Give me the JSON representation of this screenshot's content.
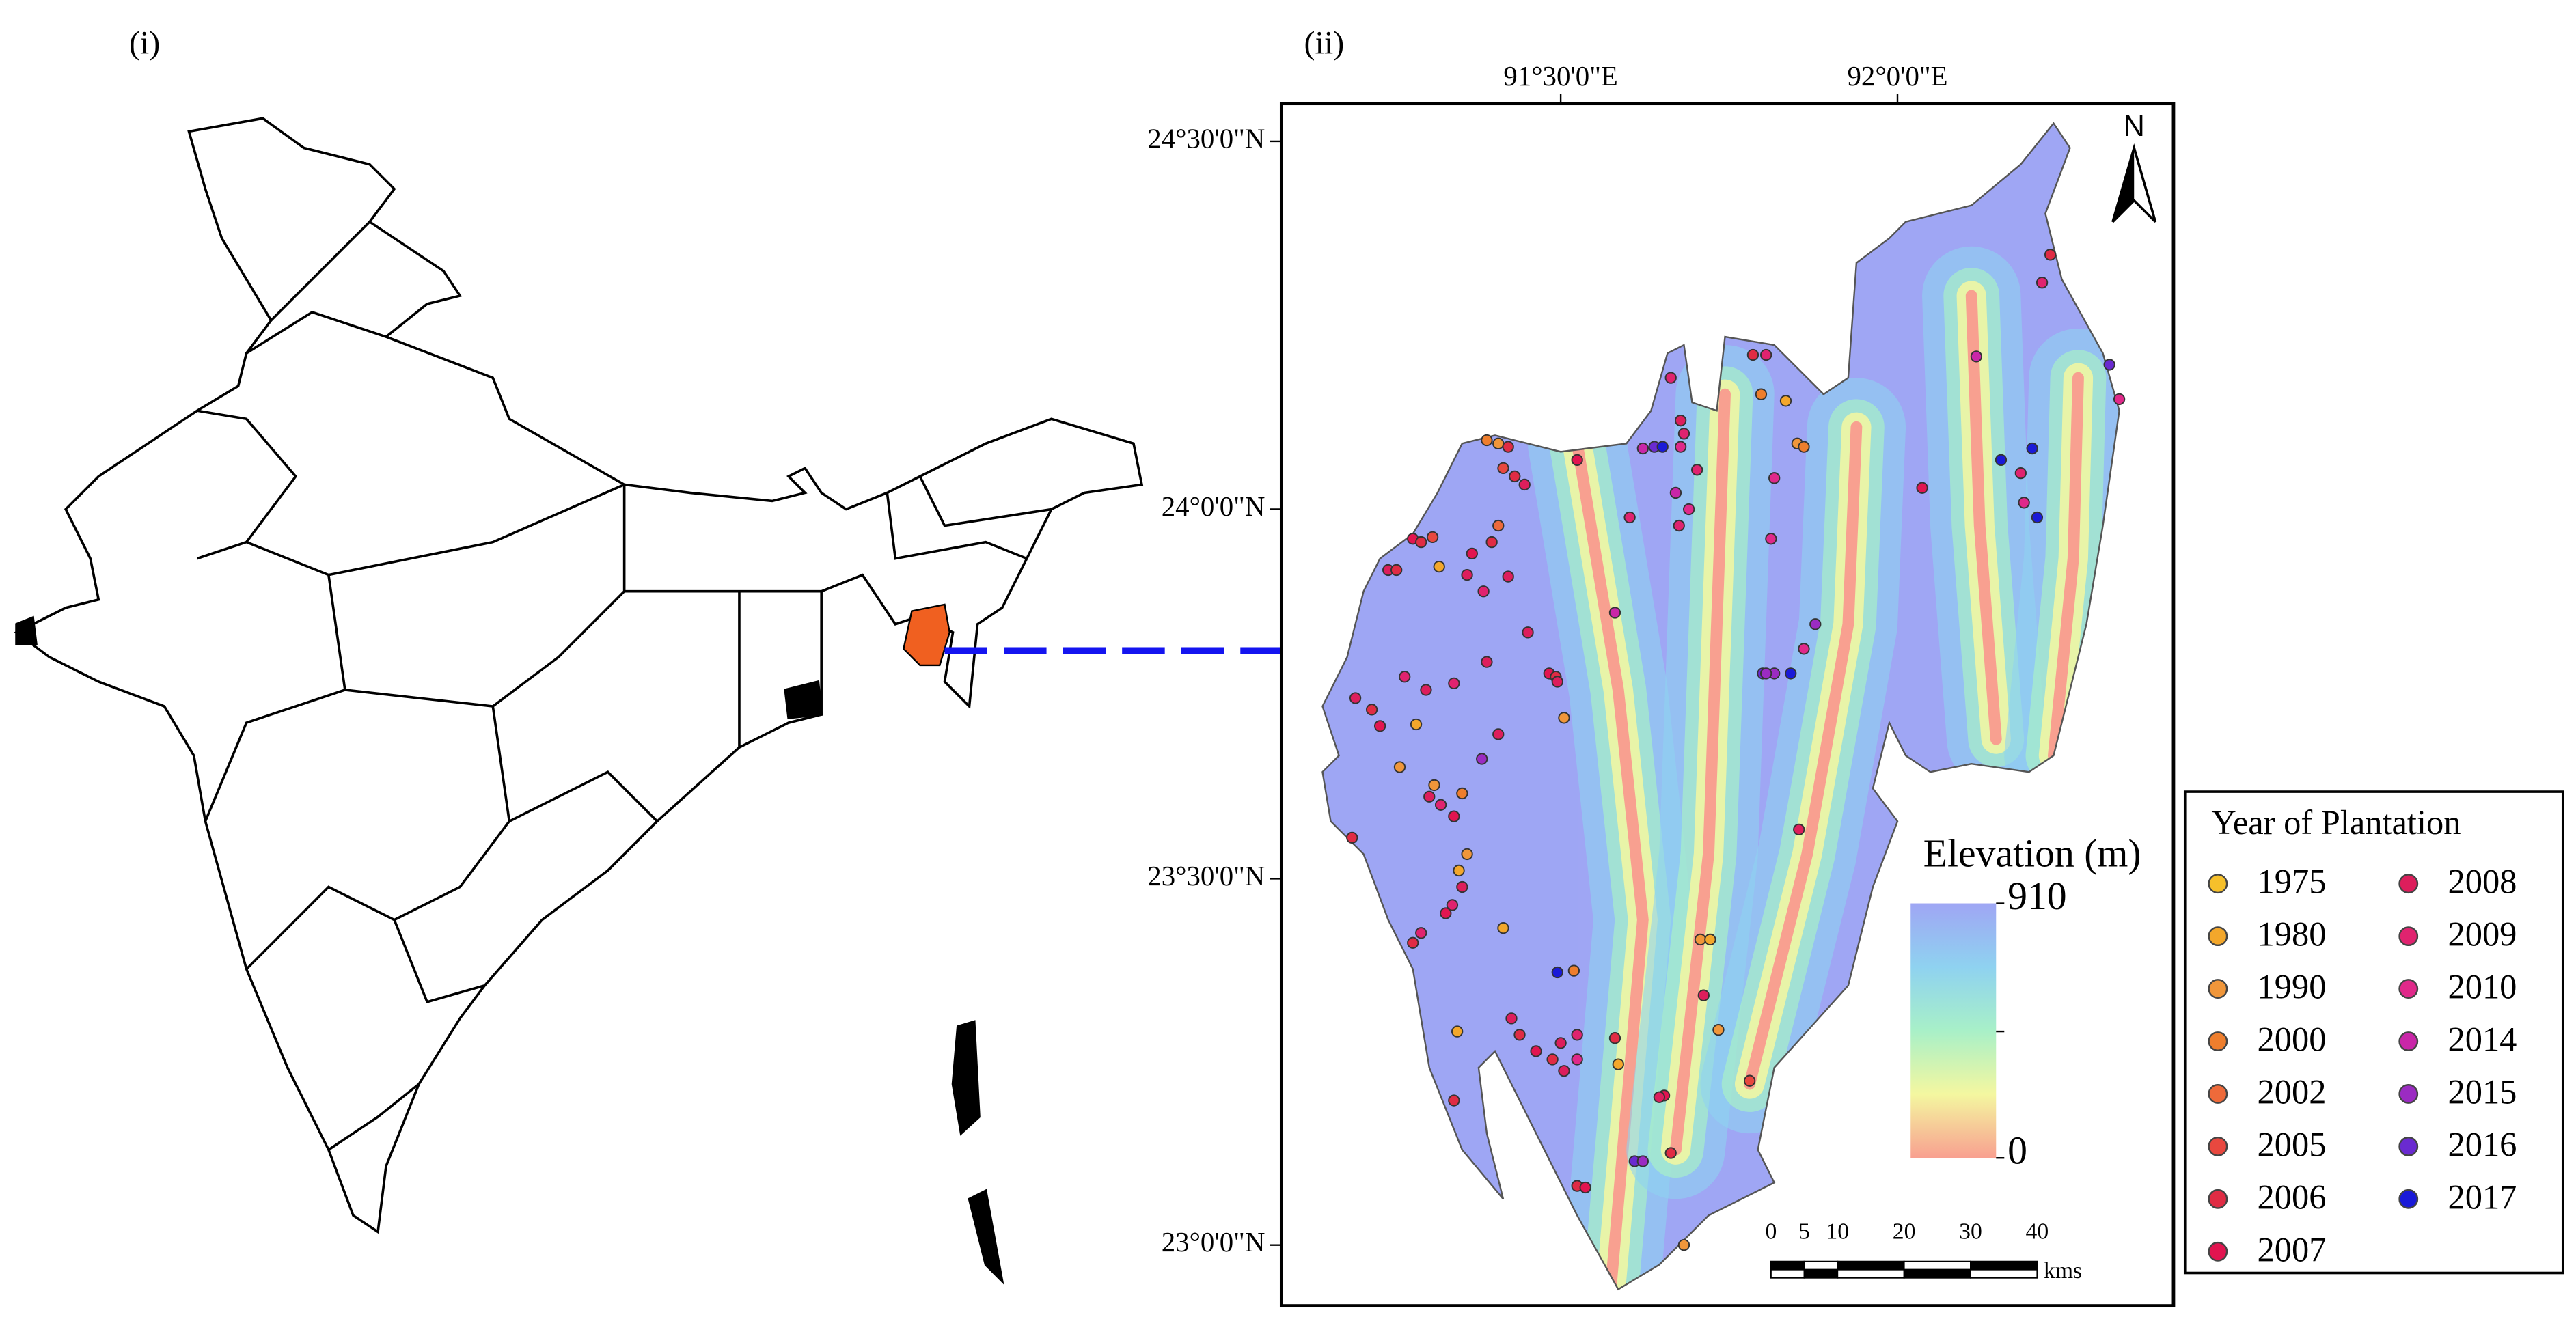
{
  "panels": {
    "left_label": "(i)",
    "right_label": "(ii)"
  },
  "map": {
    "longitude_labels": [
      "91°30'0\"E",
      "92°0'0\"E"
    ],
    "latitude_labels": [
      "24°30'0\"N",
      "24°0'0\"N",
      "23°30'0\"N",
      "23°0'0\"N"
    ],
    "north": "N"
  },
  "elevation_legend": {
    "title": "Elevation (m)",
    "max": 910,
    "min": 0,
    "colors": [
      "#9fa6f4",
      "#8fd2f0",
      "#a8f0c8",
      "#f4f7a0",
      "#f8a090"
    ]
  },
  "scale_bar": {
    "ticks": [
      0,
      5,
      10,
      20,
      30,
      40
    ],
    "unit": "kms"
  },
  "plantation_legend": {
    "title": "Year of Plantation",
    "entries": [
      {
        "year": 1975,
        "color": "#f6c02b"
      },
      {
        "year": 1980,
        "color": "#f3a72b"
      },
      {
        "year": 1990,
        "color": "#f0963a"
      },
      {
        "year": 2000,
        "color": "#ee7e2d"
      },
      {
        "year": 2002,
        "color": "#ee6a3a"
      },
      {
        "year": 2005,
        "color": "#e8483f"
      },
      {
        "year": 2006,
        "color": "#e02c44"
      },
      {
        "year": 2007,
        "color": "#e21550"
      },
      {
        "year": 2008,
        "color": "#dd1e5c"
      },
      {
        "year": 2009,
        "color": "#e0236f"
      },
      {
        "year": 2010,
        "color": "#e0298a"
      },
      {
        "year": 2014,
        "color": "#c926a8"
      },
      {
        "year": 2015,
        "color": "#9b2bc2"
      },
      {
        "year": 2016,
        "color": "#6a2ad0"
      },
      {
        "year": 2017,
        "color": "#1a1ad8"
      }
    ]
  }
}
